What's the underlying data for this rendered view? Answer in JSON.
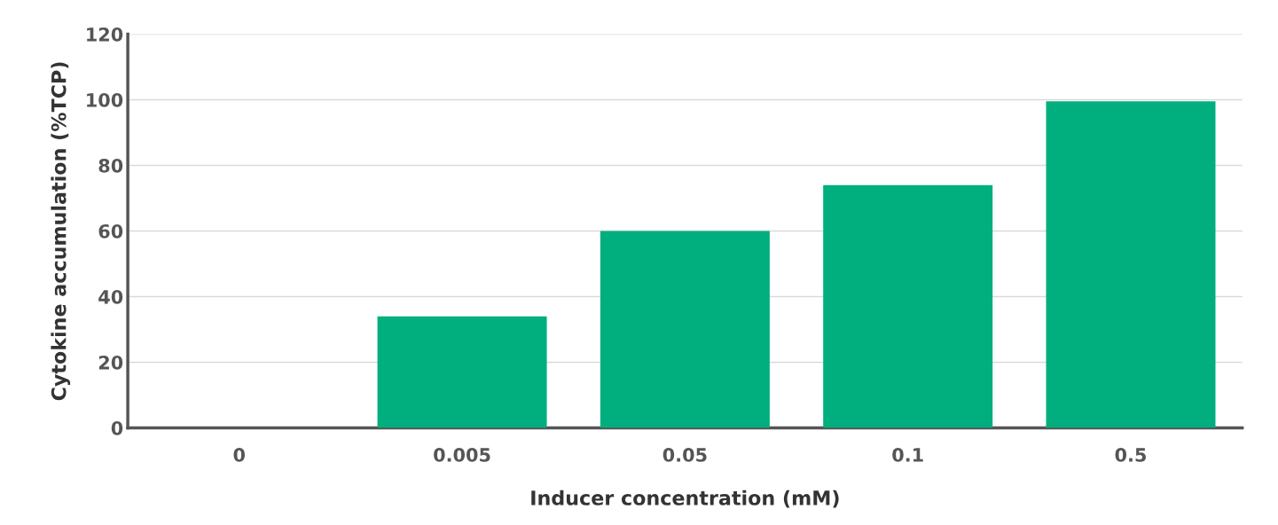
{
  "chart_data": {
    "type": "bar",
    "xlabel": "Inducer concentration (mM)",
    "ylabel": "Cytokine accumulation (%TCP)",
    "categories": [
      "0",
      "0.005",
      "0.05",
      "0.1",
      "0.5"
    ],
    "values": [
      0,
      34,
      60,
      74,
      99.5
    ],
    "color": "#00ae7e",
    "ylim": [
      0,
      120
    ],
    "yticks": [
      0,
      20,
      40,
      60,
      80,
      100,
      120
    ],
    "grid": "y"
  }
}
